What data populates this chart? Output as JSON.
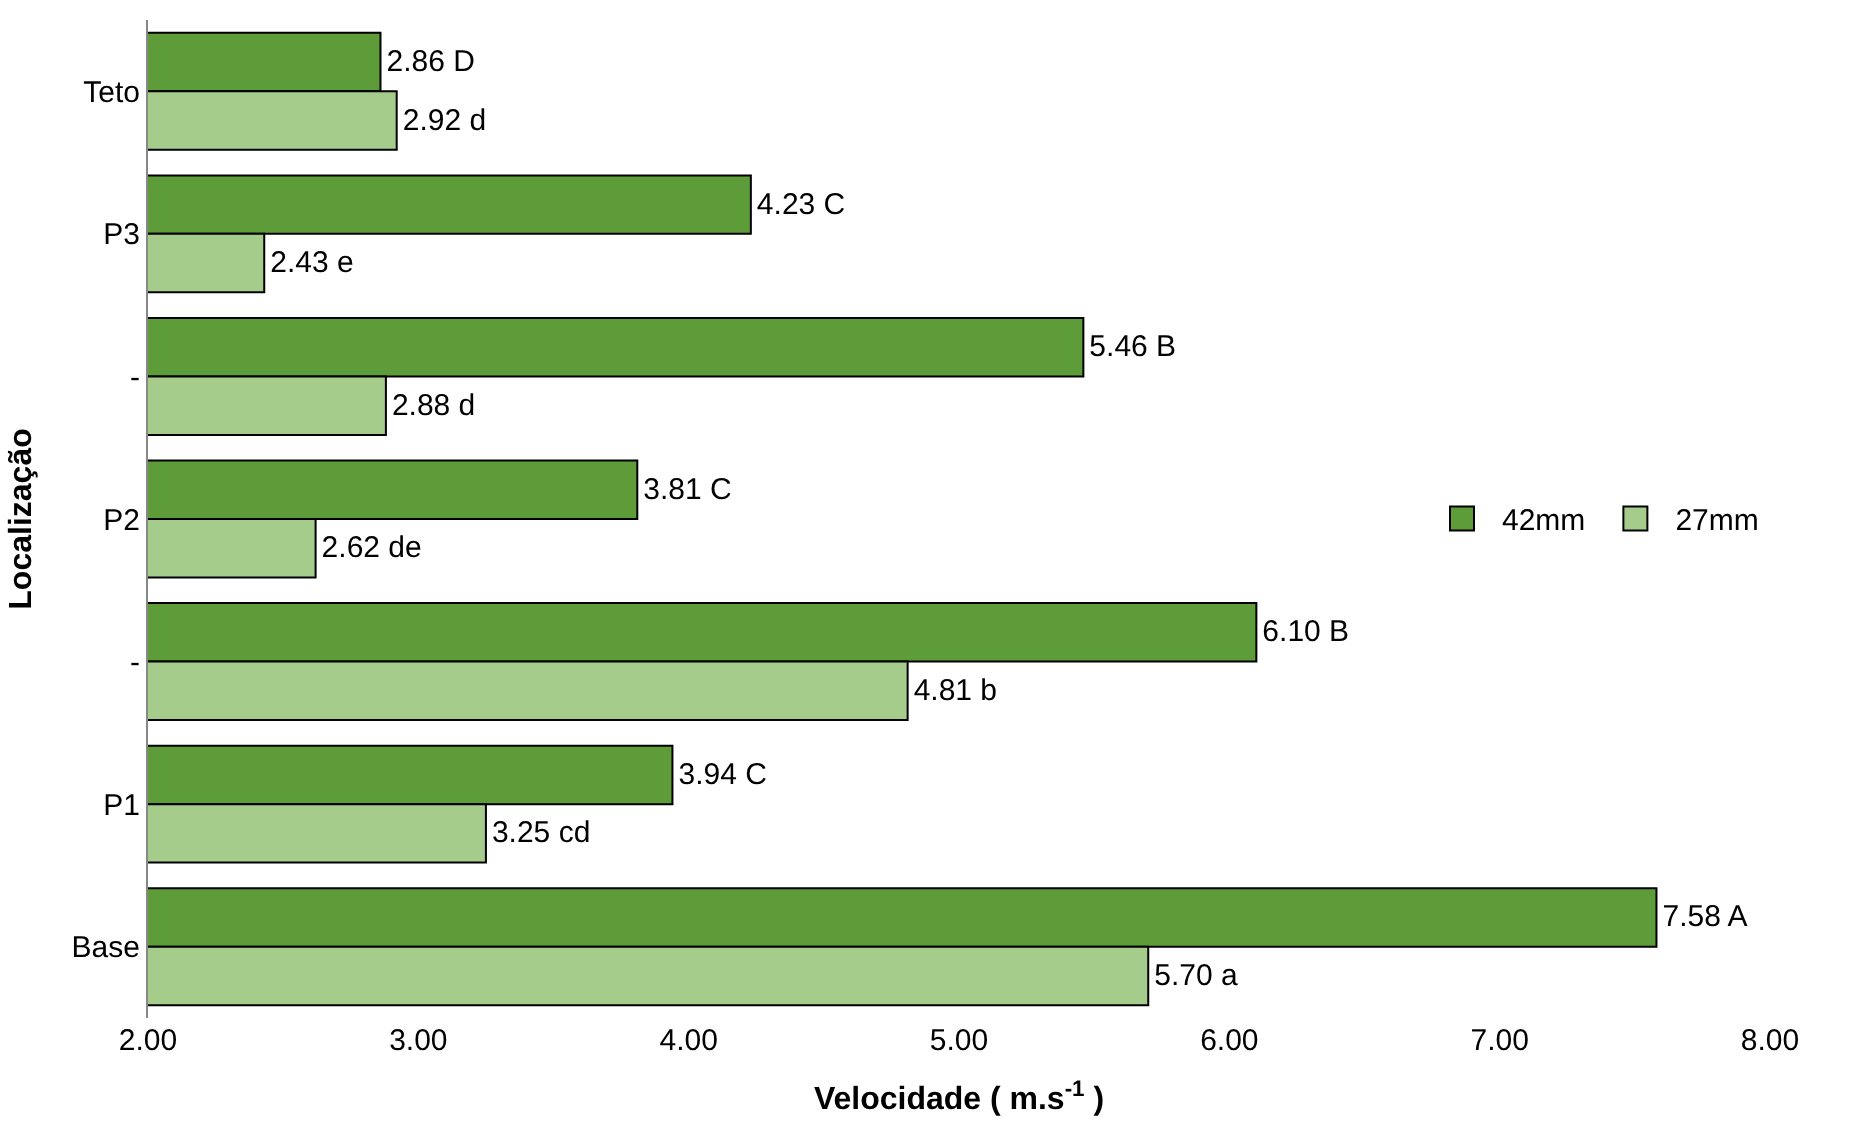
{
  "chart_data": {
    "type": "bar",
    "orientation": "horizontal",
    "xlabel": "Velocidade ( m.s$^{-1}$ )",
    "ylabel": "Localização",
    "categories": [
      "Teto",
      "P3",
      "-",
      "P2",
      "-",
      "P1",
      "Base"
    ],
    "series": [
      {
        "name": "42mm",
        "color": "#5e9c3a",
        "values": [
          2.86,
          4.23,
          5.46,
          3.81,
          6.1,
          3.94,
          7.58
        ],
        "value_labels": [
          "2.86 D",
          "4.23 C",
          "5.46 B",
          "3.81 C",
          "6.10 B",
          "3.94 C",
          "7.58 A"
        ]
      },
      {
        "name": "27mm",
        "color": "#a6cc8c",
        "values": [
          2.92,
          2.43,
          2.88,
          2.62,
          4.81,
          3.25,
          5.7
        ],
        "value_labels": [
          "2.92 d",
          "2.43 e",
          "2.88 d",
          "2.62 de",
          "4.81 b",
          "3.25 cd",
          "5.70 a"
        ]
      }
    ],
    "xlim": [
      2,
      8
    ],
    "xticks": [
      {
        "value": 2,
        "label": "2.00"
      },
      {
        "value": 3,
        "label": "3.00"
      },
      {
        "value": 4,
        "label": "4.00"
      },
      {
        "value": 5,
        "label": "5.00"
      },
      {
        "value": 6,
        "label": "6.00"
      },
      {
        "value": 7,
        "label": "7.00"
      },
      {
        "value": 8,
        "label": "8.00"
      }
    ],
    "legend": "right"
  }
}
